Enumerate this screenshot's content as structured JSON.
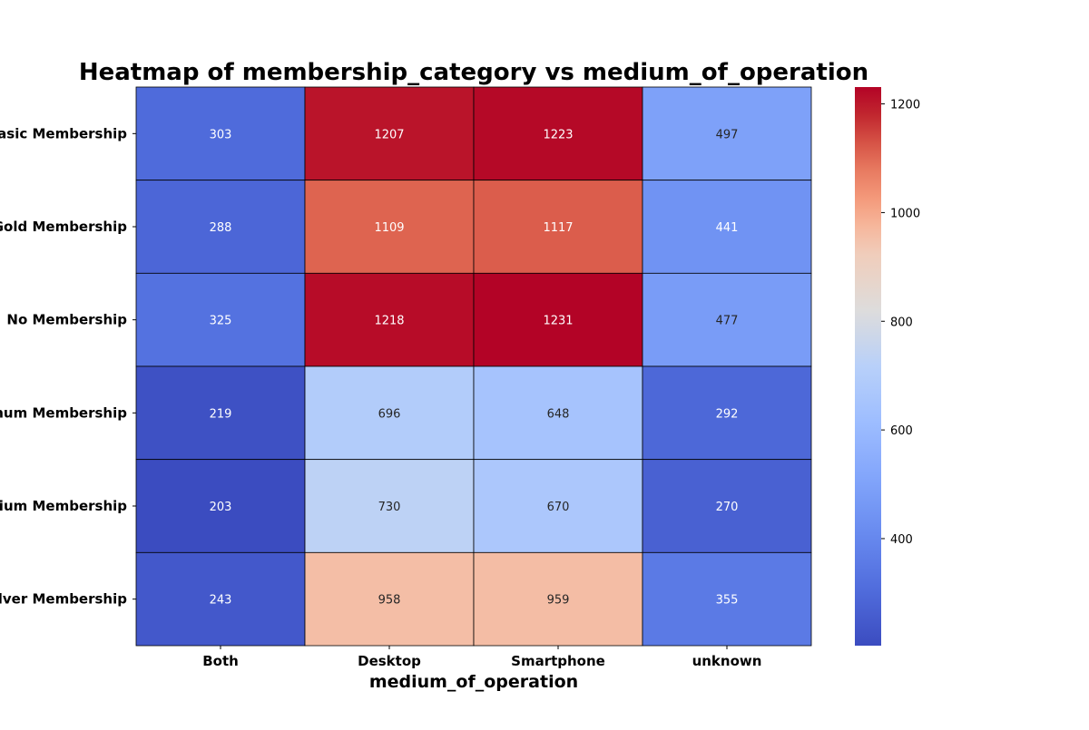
{
  "chart_data": {
    "type": "heatmap",
    "title": "Heatmap of membership_category vs medium_of_operation",
    "xlabel": "medium_of_operation",
    "ylabel": "",
    "x_categories": [
      "Both",
      "Desktop",
      "Smartphone",
      "unknown"
    ],
    "y_categories": [
      "Basic Membership",
      "Gold Membership",
      "No Membership",
      "Platinum Membership",
      "Premium Membership",
      "Silver Membership"
    ],
    "values": [
      [
        303,
        1207,
        1223,
        497
      ],
      [
        288,
        1109,
        1117,
        441
      ],
      [
        325,
        1218,
        1231,
        477
      ],
      [
        219,
        696,
        648,
        292
      ],
      [
        203,
        730,
        670,
        270
      ],
      [
        243,
        958,
        959,
        355
      ]
    ],
    "colormap": "coolwarm",
    "vmin": 203,
    "vmax": 1231,
    "colorbar_ticks": [
      400,
      600,
      800,
      1000,
      1200
    ],
    "annotate": true,
    "cell_border_color": "#000000"
  }
}
